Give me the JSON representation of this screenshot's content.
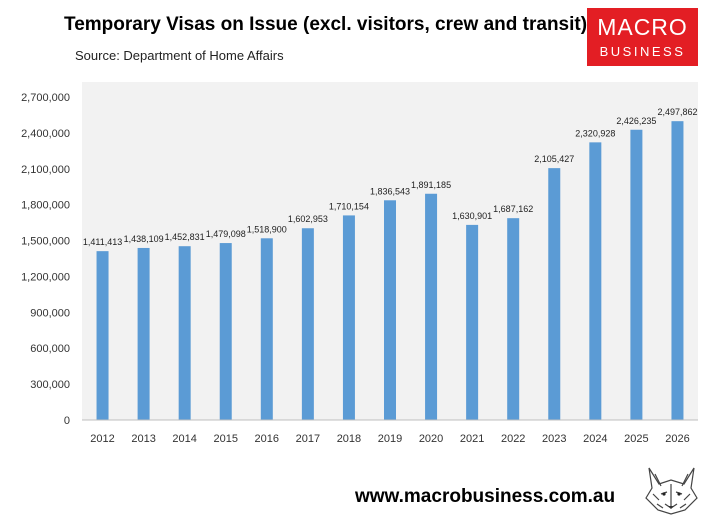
{
  "header": {
    "title": "Temporary Visas on Issue (excl. visitors, crew and transit)",
    "source": "Source: Department of Home Affairs"
  },
  "logo": {
    "line1": "MACRO",
    "line2": "BUSINESS",
    "color": "#e31e24"
  },
  "footer": {
    "url": "www.macrobusiness.com.au",
    "mascot_icon": "wolf-head-icon"
  },
  "chart_data": {
    "type": "bar",
    "categories": [
      "2012",
      "2013",
      "2014",
      "2015",
      "2016",
      "2017",
      "2018",
      "2019",
      "2020",
      "2021",
      "2022",
      "2023",
      "2024",
      "2025",
      "2026"
    ],
    "values": [
      1411413,
      1438109,
      1452831,
      1479098,
      1518900,
      1602953,
      1710154,
      1836543,
      1891185,
      1630901,
      1687162,
      2105427,
      2320928,
      2426235,
      2497862
    ],
    "data_labels": [
      "1,411,413",
      "1,438,109",
      "1,452,831",
      "1,479,098",
      "1,518,900",
      "1,602,953",
      "1,710,154",
      "1,836,543",
      "1,891,185",
      "1,630,901",
      "1,687,162",
      "2,105,427",
      "2,320,928",
      "2,426,235",
      "2,497,862"
    ],
    "yticks": [
      0,
      300000,
      600000,
      900000,
      1200000,
      1500000,
      1800000,
      2100000,
      2400000,
      2700000
    ],
    "ytick_labels": [
      "0",
      "300,000",
      "600,000",
      "900,000",
      "1,200,000",
      "1,500,000",
      "1,800,000",
      "2,100,000",
      "2,400,000",
      "2,700,000"
    ],
    "ylim": [
      0,
      2700000
    ],
    "title": "Temporary Visas on Issue (excl. visitors, crew and transit)",
    "xlabel": "",
    "ylabel": "",
    "bar_color": "#5b9bd5",
    "plot_background": "#f2f2f2",
    "grid": false,
    "legend": "none"
  }
}
